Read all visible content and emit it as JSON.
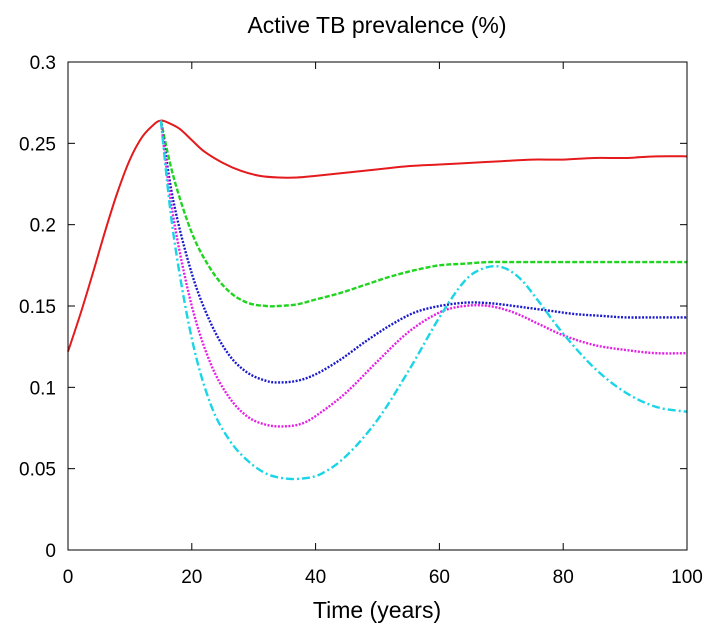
{
  "chart_data": {
    "type": "line",
    "title": "Active TB prevalence (%)",
    "xlabel": "Time (years)",
    "ylabel": "",
    "xlim": [
      0,
      100
    ],
    "ylim": [
      0,
      0.3
    ],
    "xticks": [
      0,
      20,
      40,
      60,
      80,
      100
    ],
    "xtick_labels": [
      "0",
      "20",
      "40",
      "60",
      "80",
      "100"
    ],
    "yticks": [
      0,
      0.05,
      0.1,
      0.15,
      0.2,
      0.25,
      0.3
    ],
    "ytick_labels": [
      "0",
      "0.05",
      "0.1",
      "0.15",
      "0.2",
      "0.25",
      "0.3"
    ],
    "grid": false,
    "legend": "none",
    "series": [
      {
        "color": "#e41a1c",
        "style": "solid",
        "x": [
          0,
          2,
          4,
          6,
          8,
          10,
          12,
          14,
          15,
          16,
          18,
          20,
          22,
          25,
          28,
          31,
          34,
          37,
          40,
          45,
          50,
          55,
          60,
          65,
          70,
          75,
          80,
          85,
          90,
          95,
          100
        ],
        "y": [
          0.122,
          0.145,
          0.17,
          0.196,
          0.22,
          0.24,
          0.254,
          0.262,
          0.264,
          0.263,
          0.259,
          0.252,
          0.245,
          0.238,
          0.233,
          0.23,
          0.229,
          0.229,
          0.23,
          0.232,
          0.234,
          0.236,
          0.237,
          0.238,
          0.239,
          0.24,
          0.24,
          0.241,
          0.241,
          0.242,
          0.242
        ]
      },
      {
        "color": "#1fd51f",
        "style": "dashed",
        "x": [
          15,
          17,
          20,
          23,
          26,
          29,
          32,
          34,
          37,
          40,
          44,
          48,
          52,
          56,
          60,
          64,
          68,
          72,
          76,
          80,
          85,
          90,
          95,
          100
        ],
        "y": [
          0.264,
          0.23,
          0.195,
          0.173,
          0.159,
          0.152,
          0.15,
          0.15,
          0.151,
          0.154,
          0.158,
          0.163,
          0.168,
          0.172,
          0.175,
          0.176,
          0.177,
          0.177,
          0.177,
          0.177,
          0.177,
          0.177,
          0.177,
          0.177
        ]
      },
      {
        "color": "#1a1acc",
        "style": "dotted",
        "x": [
          15,
          17,
          20,
          23,
          26,
          29,
          32,
          34,
          37,
          40,
          44,
          48,
          52,
          56,
          60,
          64,
          67,
          70,
          74,
          78,
          82,
          86,
          90,
          95,
          100
        ],
        "y": [
          0.264,
          0.215,
          0.17,
          0.14,
          0.12,
          0.109,
          0.104,
          0.103,
          0.104,
          0.108,
          0.117,
          0.128,
          0.138,
          0.146,
          0.15,
          0.152,
          0.152,
          0.151,
          0.149,
          0.147,
          0.145,
          0.144,
          0.143,
          0.143,
          0.143
        ]
      },
      {
        "color": "#e61fe6",
        "style": "dotted",
        "x": [
          15,
          17,
          20,
          23,
          26,
          29,
          32,
          35,
          38,
          41,
          45,
          50,
          55,
          60,
          64,
          68,
          72,
          76,
          80,
          85,
          90,
          95,
          100
        ],
        "y": [
          0.264,
          0.205,
          0.15,
          0.115,
          0.094,
          0.082,
          0.077,
          0.076,
          0.078,
          0.085,
          0.097,
          0.116,
          0.134,
          0.146,
          0.15,
          0.15,
          0.146,
          0.139,
          0.132,
          0.126,
          0.123,
          0.121,
          0.121
        ]
      },
      {
        "color": "#19d5e6",
        "style": "dashdot",
        "x": [
          15,
          17,
          20,
          23,
          26,
          29,
          32,
          35,
          38,
          41,
          45,
          50,
          55,
          60,
          64,
          67,
          70,
          73,
          76,
          80,
          85,
          90,
          95,
          100
        ],
        "y": [
          0.264,
          0.195,
          0.13,
          0.09,
          0.068,
          0.055,
          0.047,
          0.044,
          0.044,
          0.047,
          0.058,
          0.08,
          0.11,
          0.143,
          0.165,
          0.173,
          0.174,
          0.167,
          0.153,
          0.133,
          0.112,
          0.097,
          0.088,
          0.085
        ]
      }
    ]
  }
}
